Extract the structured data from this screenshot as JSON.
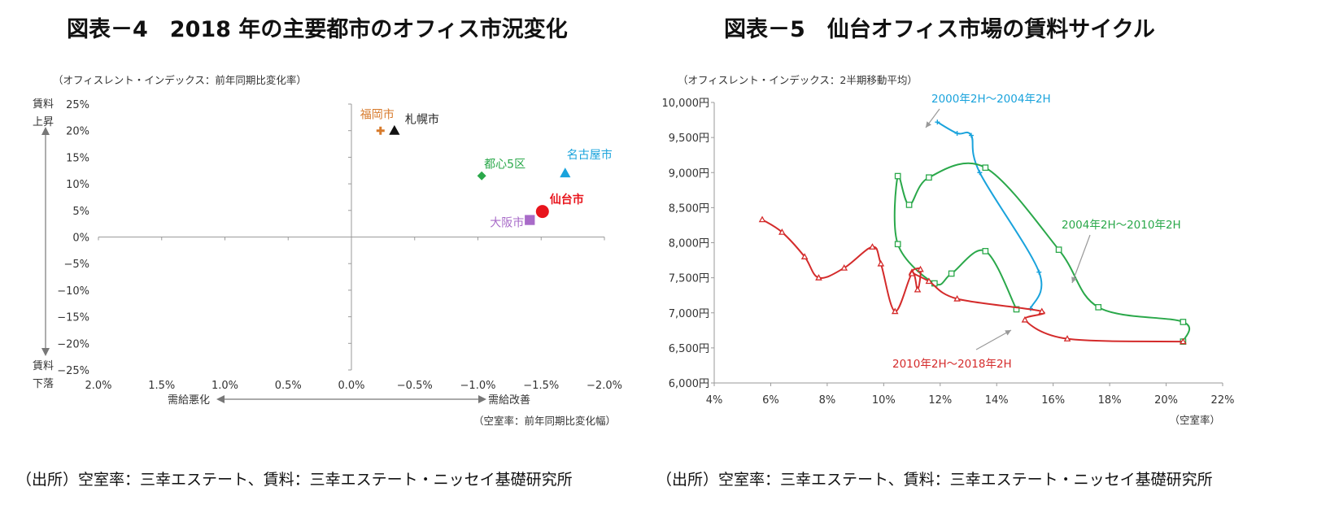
{
  "left": {
    "title": "図表－4　2018 年の主要都市のオフィス市況変化",
    "source": "（出所）空室率：三幸エステート、賃料：三幸エステート・ニッセイ基礎研究所",
    "chart_data": {
      "type": "scatter",
      "y_unit_note": "（オフィスレント・インデックス：前年同期比変化率）",
      "x_unit_note": "（空室率：前年同期比変化幅）",
      "x_ticks": [
        "2.0%",
        "1.5%",
        "1.0%",
        "0.5%",
        "0.0%",
        "−0.5%",
        "−1.0%",
        "−1.5%",
        "−2.0%"
      ],
      "y_ticks": [
        "25%",
        "20%",
        "15%",
        "10%",
        "5%",
        "0%",
        "−5%",
        "−10%",
        "−15%",
        "−20%",
        "−25%"
      ],
      "xlim": [
        2.0,
        -2.0
      ],
      "ylim": [
        -25,
        25
      ],
      "y_top_label_1": "賃料",
      "y_top_label_2": "上昇",
      "y_bottom_label_1": "賃料",
      "y_bottom_label_2": "下落",
      "x_left_label": "需給悪化",
      "x_right_label": "需給改善",
      "points": [
        {
          "name": "福岡市",
          "x": -0.23,
          "y": 20.0,
          "marker": "plus",
          "color": "#d77a2b",
          "label_pos": "upper-left"
        },
        {
          "name": "札幌市",
          "x": -0.34,
          "y": 20.0,
          "marker": "triangle",
          "color": "#111111",
          "label_pos": "upper-right"
        },
        {
          "name": "都心5区",
          "x": -1.03,
          "y": 11.5,
          "marker": "diamond",
          "color": "#2aa84a",
          "label_pos": "upper-right"
        },
        {
          "name": "名古屋市",
          "x": -1.69,
          "y": 12.0,
          "marker": "triangle",
          "color": "#1aa3dc",
          "label_pos": "upper-right"
        },
        {
          "name": "仙台市",
          "x": -1.51,
          "y": 4.8,
          "marker": "circle",
          "color": "#e8141c",
          "label_pos": "right",
          "bold": true
        },
        {
          "name": "大阪市",
          "x": -1.41,
          "y": 3.2,
          "marker": "square",
          "color": "#a86bc8",
          "label_pos": "left"
        }
      ]
    }
  },
  "right": {
    "title": "図表－5　仙台オフィス市場の賃料サイクル",
    "source": "（出所）空室率：三幸エステート、賃料：三幸エステート・ニッセイ基礎研究所",
    "chart_data": {
      "type": "line",
      "y_unit_note": "（オフィスレント・インデックス：2半期移動平均）",
      "x_unit_note": "（空室率）",
      "xlim": [
        4,
        22
      ],
      "ylim": [
        6000,
        10000
      ],
      "x_ticks": [
        "4%",
        "6%",
        "8%",
        "10%",
        "12%",
        "14%",
        "16%",
        "18%",
        "20%",
        "22%"
      ],
      "y_ticks": [
        "10,000円",
        "9,500円",
        "9,000円",
        "8,500円",
        "8,000円",
        "7,500円",
        "7,000円",
        "6,500円",
        "6,000円"
      ],
      "series": [
        {
          "name": "2000年2H～2004年2H",
          "color": "#1aa3dc",
          "marker": "plus",
          "x": [
            11.9,
            12.6,
            13.1,
            13.4,
            15.5,
            15.2
          ],
          "y": [
            9720,
            9560,
            9530,
            9000,
            7580,
            7060
          ]
        },
        {
          "name": "2004年2H～2010年2H",
          "color": "#2aa84a",
          "marker": "square",
          "x": [
            14.7,
            13.6,
            12.4,
            11.8,
            10.5,
            10.5,
            10.9,
            11.6,
            13.6,
            16.2,
            17.6,
            20.6,
            20.6
          ],
          "y": [
            7050,
            7880,
            7560,
            7420,
            7980,
            8950,
            8540,
            8930,
            9070,
            7900,
            7080,
            6870,
            6590
          ]
        },
        {
          "name": "2010年2H～2018年2H",
          "color": "#d42b2b",
          "marker": "triangle",
          "x": [
            20.6,
            16.5,
            15.0,
            15.6,
            12.6,
            11.6,
            11.0,
            11.3,
            11.2,
            11.0,
            10.4,
            9.9,
            9.6,
            8.6,
            7.7,
            7.2,
            6.4,
            5.7
          ],
          "y": [
            6590,
            6630,
            6900,
            7020,
            7200,
            7450,
            7580,
            7620,
            7330,
            7560,
            7020,
            7700,
            7940,
            7640,
            7500,
            7800,
            8150,
            8330
          ]
        }
      ],
      "annotations": [
        {
          "text": "2000年2H～2004年2H",
          "series": 0
        },
        {
          "text": "2004年2H～2010年2H",
          "series": 1
        },
        {
          "text": "2010年2H～2018年2H",
          "series": 2
        }
      ]
    }
  }
}
